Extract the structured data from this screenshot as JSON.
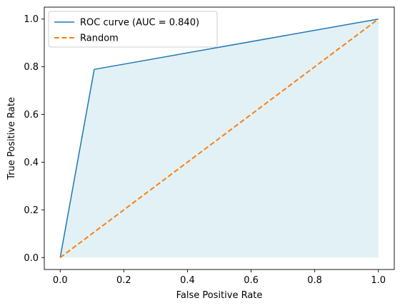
{
  "chart_data": {
    "type": "line",
    "title": "",
    "xlabel": "False Positive Rate",
    "ylabel": "True Positive Rate",
    "xlim": [
      -0.05,
      1.05
    ],
    "ylim": [
      -0.05,
      1.05
    ],
    "xticks": [
      0.0,
      0.2,
      0.4,
      0.6,
      0.8,
      1.0
    ],
    "yticks": [
      0.0,
      0.2,
      0.4,
      0.6,
      0.8,
      1.0
    ],
    "xtick_labels": [
      "0.0",
      "0.2",
      "0.4",
      "0.6",
      "0.8",
      "1.0"
    ],
    "ytick_labels": [
      "0.0",
      "0.2",
      "0.4",
      "0.6",
      "0.8",
      "1.0"
    ],
    "grid": false,
    "legend_position": "upper-left",
    "series": [
      {
        "name": "ROC curve (AUC = 0.840)",
        "style": "solid",
        "color": "#1f77b4",
        "fill_under": true,
        "fill_color": "#add8e6",
        "x": [
          0.0,
          0.107,
          1.0
        ],
        "y": [
          0.0,
          0.789,
          1.0
        ]
      },
      {
        "name": "Random",
        "style": "dashed",
        "color": "#ff7f0e",
        "x": [
          0.0,
          1.0
        ],
        "y": [
          0.0,
          1.0
        ]
      }
    ]
  }
}
